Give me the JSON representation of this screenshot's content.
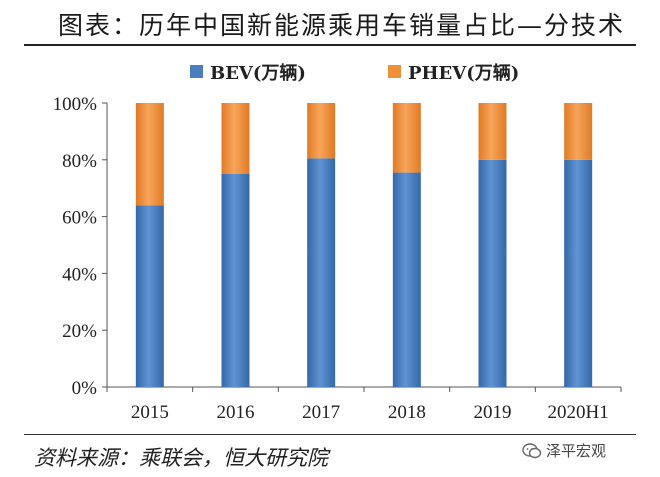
{
  "title": "图表：历年中国新能源乘用车销量占比—分技术",
  "source": "资料来源：乘联会，恒大研究院",
  "watermark": {
    "text": "泽平宏观",
    "icon": "wechat-icon"
  },
  "colors": {
    "bev": "#4a7ebf",
    "phev": "#f0913a",
    "axis": "#555555",
    "text": "#222222"
  },
  "chart_data": {
    "type": "bar",
    "stacked": true,
    "categories": [
      "2015",
      "2016",
      "2017",
      "2018",
      "2019",
      "2020H1"
    ],
    "series": [
      {
        "name": "BEV(万辆)",
        "values": [
          64,
          75,
          80.5,
          75.5,
          80,
          80
        ]
      },
      {
        "name": "PHEV(万辆)",
        "values": [
          36,
          25,
          19.5,
          24.5,
          20,
          20
        ]
      }
    ],
    "yticks": [
      "0%",
      "20%",
      "40%",
      "60%",
      "80%",
      "100%"
    ],
    "ylim": [
      0,
      100
    ],
    "legend_position": "top",
    "grid": false
  }
}
